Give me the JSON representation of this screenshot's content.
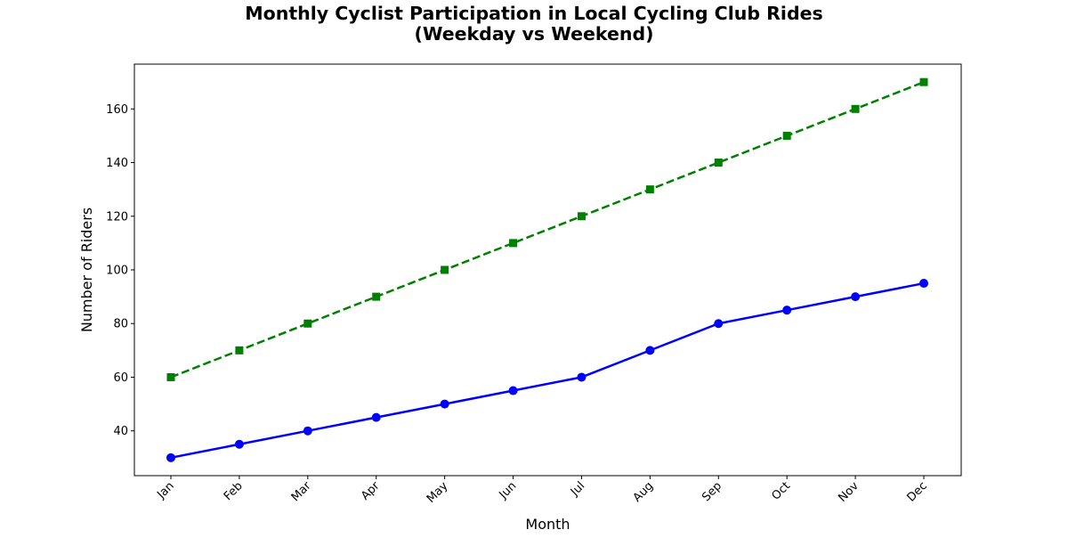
{
  "chart_data": {
    "type": "line",
    "title_lines": [
      "Monthly Cyclist Participation in Local Cycling Club Rides",
      "(Weekday vs Weekend)"
    ],
    "xlabel": "Month",
    "ylabel": "Number of Riders",
    "categories": [
      "Jan",
      "Feb",
      "Mar",
      "Apr",
      "May",
      "Jun",
      "Jul",
      "Aug",
      "Sep",
      "Oct",
      "Nov",
      "Dec"
    ],
    "yticks": [
      40,
      60,
      80,
      100,
      120,
      140,
      160
    ],
    "ylim": [
      23.3,
      176.7
    ],
    "xtick_rotation": 45,
    "grid": false,
    "series": [
      {
        "values": [
          30,
          35,
          40,
          45,
          50,
          55,
          60,
          70,
          80,
          85,
          90,
          95
        ],
        "color": "#0000ff",
        "line_style": "solid",
        "marker": "circle"
      },
      {
        "values": [
          60,
          70,
          80,
          90,
          100,
          110,
          120,
          130,
          140,
          150,
          160,
          170
        ],
        "color": "#008000",
        "line_style": "dashed",
        "marker": "square"
      }
    ]
  }
}
